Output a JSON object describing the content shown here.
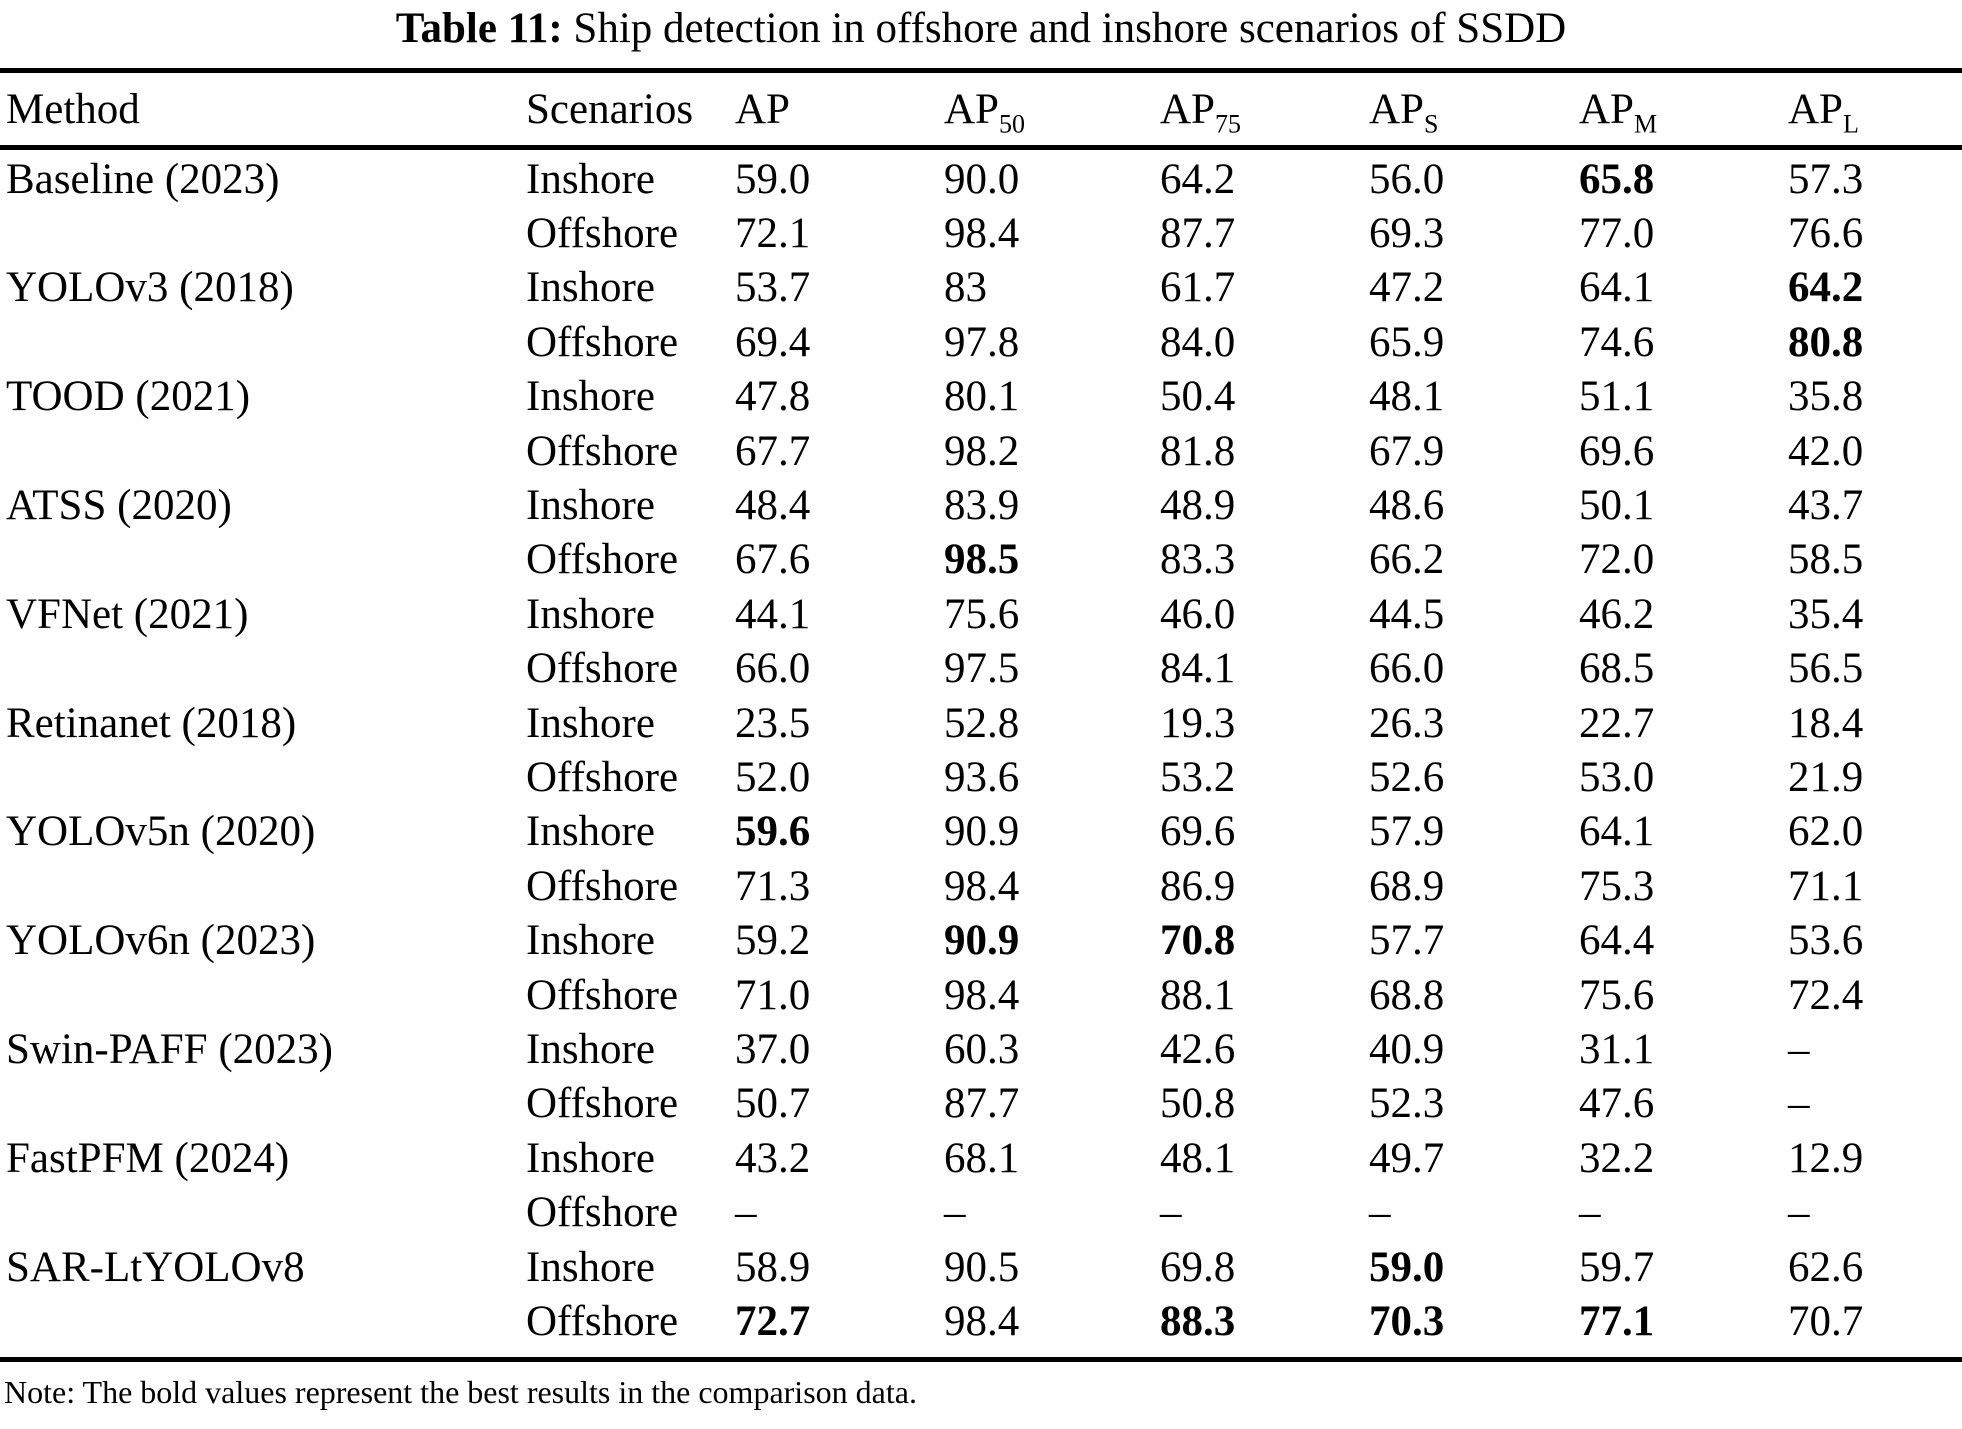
{
  "colors": {
    "background": "#ffffff",
    "text": "#000000",
    "rule": "#000000"
  },
  "caption": {
    "label": "Table 11:",
    "text": " Ship detection in offshore and inshore scenarios of SSDD"
  },
  "table": {
    "columns": [
      {
        "label": "Method",
        "sub": ""
      },
      {
        "label": "Scenarios",
        "sub": ""
      },
      {
        "label": "AP",
        "sub": ""
      },
      {
        "label": "AP",
        "sub": "50"
      },
      {
        "label": "AP",
        "sub": "75"
      },
      {
        "label": "AP",
        "sub": "S"
      },
      {
        "label": "AP",
        "sub": "M"
      },
      {
        "label": "AP",
        "sub": "L"
      }
    ],
    "rows": [
      {
        "method": "Baseline (2023)",
        "scenario": "Inshore",
        "values": [
          "59.0",
          "90.0",
          "64.2",
          "56.0",
          "65.8",
          "57.3"
        ],
        "bold": [
          4
        ]
      },
      {
        "method": "",
        "scenario": "Offshore",
        "values": [
          "72.1",
          "98.4",
          "87.7",
          "69.3",
          "77.0",
          "76.6"
        ],
        "bold": []
      },
      {
        "method": "YOLOv3 (2018)",
        "scenario": "Inshore",
        "values": [
          "53.7",
          "83",
          "61.7",
          "47.2",
          "64.1",
          "64.2"
        ],
        "bold": [
          5
        ]
      },
      {
        "method": "",
        "scenario": "Offshore",
        "values": [
          "69.4",
          "97.8",
          "84.0",
          "65.9",
          "74.6",
          "80.8"
        ],
        "bold": [
          5
        ]
      },
      {
        "method": "TOOD (2021)",
        "scenario": "Inshore",
        "values": [
          "47.8",
          "80.1",
          "50.4",
          "48.1",
          "51.1",
          "35.8"
        ],
        "bold": []
      },
      {
        "method": "",
        "scenario": "Offshore",
        "values": [
          "67.7",
          "98.2",
          "81.8",
          "67.9",
          "69.6",
          "42.0"
        ],
        "bold": []
      },
      {
        "method": "ATSS (2020)",
        "scenario": "Inshore",
        "values": [
          "48.4",
          "83.9",
          "48.9",
          "48.6",
          "50.1",
          "43.7"
        ],
        "bold": []
      },
      {
        "method": "",
        "scenario": "Offshore",
        "values": [
          "67.6",
          "98.5",
          "83.3",
          "66.2",
          "72.0",
          "58.5"
        ],
        "bold": [
          1
        ]
      },
      {
        "method": "VFNet (2021)",
        "scenario": "Inshore",
        "values": [
          "44.1",
          "75.6",
          "46.0",
          "44.5",
          "46.2",
          "35.4"
        ],
        "bold": []
      },
      {
        "method": "",
        "scenario": "Offshore",
        "values": [
          "66.0",
          "97.5",
          "84.1",
          "66.0",
          "68.5",
          "56.5"
        ],
        "bold": []
      },
      {
        "method": "Retinanet (2018)",
        "scenario": "Inshore",
        "values": [
          "23.5",
          "52.8",
          "19.3",
          "26.3",
          "22.7",
          "18.4"
        ],
        "bold": []
      },
      {
        "method": "",
        "scenario": "Offshore",
        "values": [
          "52.0",
          "93.6",
          "53.2",
          "52.6",
          "53.0",
          "21.9"
        ],
        "bold": []
      },
      {
        "method": "YOLOv5n (2020)",
        "scenario": "Inshore",
        "values": [
          "59.6",
          "90.9",
          "69.6",
          "57.9",
          "64.1",
          "62.0"
        ],
        "bold": [
          0
        ]
      },
      {
        "method": "",
        "scenario": "Offshore",
        "values": [
          "71.3",
          "98.4",
          "86.9",
          "68.9",
          "75.3",
          "71.1"
        ],
        "bold": []
      },
      {
        "method": "YOLOv6n (2023)",
        "scenario": "Inshore",
        "values": [
          "59.2",
          "90.9",
          "70.8",
          "57.7",
          "64.4",
          "53.6"
        ],
        "bold": [
          1,
          2
        ]
      },
      {
        "method": "",
        "scenario": "Offshore",
        "values": [
          "71.0",
          "98.4",
          "88.1",
          "68.8",
          "75.6",
          "72.4"
        ],
        "bold": []
      },
      {
        "method": "Swin-PAFF (2023)",
        "scenario": "Inshore",
        "values": [
          "37.0",
          "60.3",
          "42.6",
          "40.9",
          "31.1",
          "–"
        ],
        "bold": []
      },
      {
        "method": "",
        "scenario": "Offshore",
        "values": [
          "50.7",
          "87.7",
          "50.8",
          "52.3",
          "47.6",
          "–"
        ],
        "bold": []
      },
      {
        "method": "FastPFM (2024)",
        "scenario": "Inshore",
        "values": [
          "43.2",
          "68.1",
          "48.1",
          "49.7",
          "32.2",
          "12.9"
        ],
        "bold": []
      },
      {
        "method": "",
        "scenario": "Offshore",
        "values": [
          "–",
          "–",
          "–",
          "–",
          "–",
          "–"
        ],
        "bold": []
      },
      {
        "method": "SAR-LtYOLOv8",
        "scenario": "Inshore",
        "values": [
          "58.9",
          "90.5",
          "69.8",
          "59.0",
          "59.7",
          "62.6"
        ],
        "bold": [
          3
        ]
      },
      {
        "method": "",
        "scenario": "Offshore",
        "values": [
          "72.7",
          "98.4",
          "88.3",
          "70.3",
          "77.1",
          "70.7"
        ],
        "bold": [
          0,
          2,
          3,
          4
        ]
      }
    ]
  },
  "note": "Note: The bold values represent the best results in the comparison data."
}
